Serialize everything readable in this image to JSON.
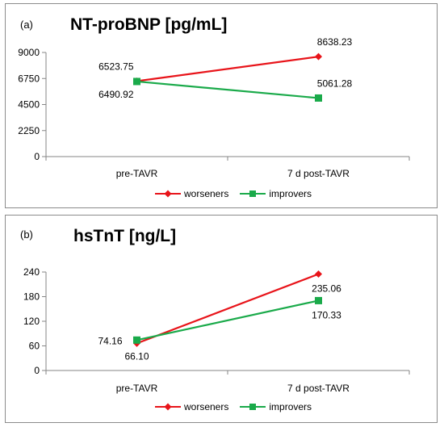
{
  "chart_data": [
    {
      "type": "line",
      "panel_label": "(a)",
      "title": "NT-proBNP [pg/mL]",
      "categories": [
        "pre-TAVR",
        "7 d post-TAVR"
      ],
      "ylim": [
        0,
        9000
      ],
      "yticks": [
        0,
        2250,
        4500,
        6750,
        9000
      ],
      "grid": false,
      "legend": "bottom",
      "series": [
        {
          "name": "worseners",
          "values": [
            6523.75,
            8638.23
          ],
          "labels": [
            "6523.75",
            "8638.23"
          ],
          "color": "#e8141a",
          "marker": "diamond"
        },
        {
          "name": "improvers",
          "values": [
            6490.92,
            5061.28
          ],
          "labels": [
            "6490.92",
            "5061.28"
          ],
          "color": "#1aaa4a",
          "marker": "square"
        }
      ]
    },
    {
      "type": "line",
      "panel_label": "(b)",
      "title": "hsTnT [ng/L]",
      "categories": [
        "pre-TAVR",
        "7 d post-TAVR"
      ],
      "ylim": [
        0,
        240
      ],
      "yticks": [
        0,
        60,
        120,
        180,
        240
      ],
      "grid": false,
      "legend": "bottom",
      "series": [
        {
          "name": "worseners",
          "values": [
            66.1,
            235.06
          ],
          "labels": [
            "66.10",
            "235.06"
          ],
          "color": "#e8141a",
          "marker": "diamond"
        },
        {
          "name": "improvers",
          "values": [
            74.16,
            170.33
          ],
          "labels": [
            "74.16",
            "170.33"
          ],
          "color": "#1aaa4a",
          "marker": "square"
        }
      ]
    }
  ]
}
